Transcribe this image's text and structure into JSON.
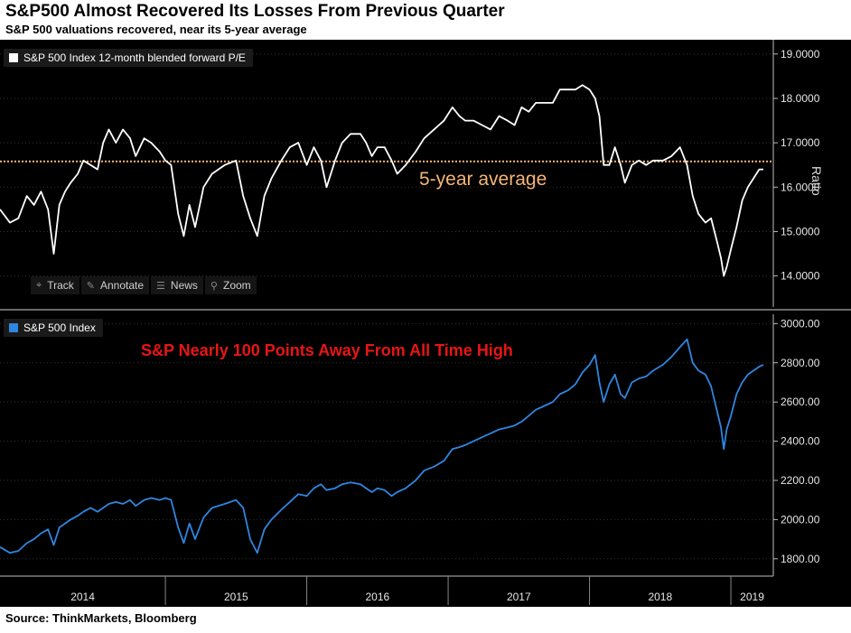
{
  "header": {
    "title": "S&P500 Almost Recovered Its Losses From Previous Quarter",
    "subtitle": "S&P 500 valuations recovered, near its 5-year average"
  },
  "footer": {
    "source": "Source: ThinkMarkets, Bloomberg"
  },
  "toolbar": {
    "items": [
      {
        "label": "Track",
        "icon": "crosshair-icon",
        "glyph": "⌖"
      },
      {
        "label": "Annotate",
        "icon": "pencil-icon",
        "glyph": "✎"
      },
      {
        "label": "News",
        "icon": "news-icon",
        "glyph": "☰"
      },
      {
        "label": "Zoom",
        "icon": "magnifier-icon",
        "glyph": "⚲"
      }
    ]
  },
  "colors": {
    "pe_line": "#ffffff",
    "spx_line": "#2f86e0",
    "avg_line": "#f5b576",
    "ath_text": "#e81515",
    "background": "#000000"
  },
  "chart_data": [
    {
      "type": "line",
      "panel": "top",
      "legend": "S&P 500 Index 12-month blended forward P/E",
      "axis_label": "Ratio",
      "ylim": [
        13.3,
        19.2
      ],
      "yticks": [
        "14.0000",
        "15.0000",
        "16.0000",
        "17.0000",
        "18.0000",
        "19.0000"
      ],
      "ytick_values": [
        14,
        15,
        16,
        17,
        18,
        19
      ],
      "reference_line": {
        "value": 16.58,
        "label": "5-year average"
      },
      "series": [
        {
          "points": [
            [
              2013.83,
              15.5
            ],
            [
              2013.9,
              15.2
            ],
            [
              2013.96,
              15.3
            ],
            [
              2014.02,
              15.8
            ],
            [
              2014.07,
              15.6
            ],
            [
              2014.12,
              15.9
            ],
            [
              2014.17,
              15.5
            ],
            [
              2014.21,
              14.5
            ],
            [
              2014.25,
              15.6
            ],
            [
              2014.29,
              15.9
            ],
            [
              2014.33,
              16.1
            ],
            [
              2014.38,
              16.3
            ],
            [
              2014.42,
              16.6
            ],
            [
              2014.47,
              16.5
            ],
            [
              2014.52,
              16.4
            ],
            [
              2014.56,
              17.0
            ],
            [
              2014.6,
              17.3
            ],
            [
              2014.65,
              17.0
            ],
            [
              2014.7,
              17.3
            ],
            [
              2014.75,
              17.1
            ],
            [
              2014.79,
              16.7
            ],
            [
              2014.85,
              17.1
            ],
            [
              2014.9,
              17.0
            ],
            [
              2014.96,
              16.8
            ],
            [
              2015.0,
              16.6
            ],
            [
              2015.04,
              16.5
            ],
            [
              2015.09,
              15.4
            ],
            [
              2015.13,
              14.9
            ],
            [
              2015.17,
              15.6
            ],
            [
              2015.21,
              15.1
            ],
            [
              2015.27,
              16.0
            ],
            [
              2015.33,
              16.3
            ],
            [
              2015.42,
              16.5
            ],
            [
              2015.5,
              16.6
            ],
            [
              2015.55,
              15.8
            ],
            [
              2015.6,
              15.3
            ],
            [
              2015.65,
              14.9
            ],
            [
              2015.7,
              15.8
            ],
            [
              2015.75,
              16.2
            ],
            [
              2015.82,
              16.6
            ],
            [
              2015.88,
              16.9
            ],
            [
              2015.94,
              17.0
            ],
            [
              2016.0,
              16.5
            ],
            [
              2016.05,
              16.9
            ],
            [
              2016.1,
              16.6
            ],
            [
              2016.14,
              16.0
            ],
            [
              2016.2,
              16.6
            ],
            [
              2016.25,
              17.0
            ],
            [
              2016.31,
              17.2
            ],
            [
              2016.38,
              17.2
            ],
            [
              2016.42,
              17.0
            ],
            [
              2016.46,
              16.7
            ],
            [
              2016.5,
              16.9
            ],
            [
              2016.55,
              16.9
            ],
            [
              2016.6,
              16.6
            ],
            [
              2016.64,
              16.3
            ],
            [
              2016.7,
              16.5
            ],
            [
              2016.77,
              16.8
            ],
            [
              2016.83,
              17.1
            ],
            [
              2016.9,
              17.3
            ],
            [
              2016.97,
              17.5
            ],
            [
              2017.03,
              17.8
            ],
            [
              2017.08,
              17.6
            ],
            [
              2017.12,
              17.5
            ],
            [
              2017.18,
              17.5
            ],
            [
              2017.24,
              17.4
            ],
            [
              2017.3,
              17.3
            ],
            [
              2017.36,
              17.6
            ],
            [
              2017.42,
              17.5
            ],
            [
              2017.47,
              17.4
            ],
            [
              2017.52,
              17.8
            ],
            [
              2017.57,
              17.7
            ],
            [
              2017.62,
              17.9
            ],
            [
              2017.68,
              17.9
            ],
            [
              2017.74,
              17.9
            ],
            [
              2017.79,
              18.2
            ],
            [
              2017.85,
              18.2
            ],
            [
              2017.9,
              18.2
            ],
            [
              2017.95,
              18.3
            ],
            [
              2018.0,
              18.2
            ],
            [
              2018.04,
              18.0
            ],
            [
              2018.07,
              17.6
            ],
            [
              2018.1,
              16.5
            ],
            [
              2018.14,
              16.5
            ],
            [
              2018.18,
              16.9
            ],
            [
              2018.22,
              16.5
            ],
            [
              2018.25,
              16.1
            ],
            [
              2018.3,
              16.5
            ],
            [
              2018.35,
              16.6
            ],
            [
              2018.4,
              16.5
            ],
            [
              2018.45,
              16.6
            ],
            [
              2018.52,
              16.6
            ],
            [
              2018.58,
              16.7
            ],
            [
              2018.64,
              16.9
            ],
            [
              2018.69,
              16.5
            ],
            [
              2018.73,
              15.8
            ],
            [
              2018.77,
              15.4
            ],
            [
              2018.82,
              15.2
            ],
            [
              2018.86,
              15.3
            ],
            [
              2018.9,
              14.8
            ],
            [
              2018.93,
              14.4
            ],
            [
              2018.95,
              14.0
            ],
            [
              2018.97,
              14.2
            ],
            [
              2019.0,
              14.6
            ],
            [
              2019.04,
              15.1
            ],
            [
              2019.08,
              15.7
            ],
            [
              2019.12,
              16.0
            ],
            [
              2019.16,
              16.2
            ],
            [
              2019.2,
              16.4
            ],
            [
              2019.23,
              16.4
            ]
          ]
        }
      ]
    },
    {
      "type": "line",
      "panel": "bottom",
      "legend": "S&P 500 Index",
      "annotation": "S&P Nearly 100 Points Away From All Time High",
      "ylim": [
        1730,
        3020
      ],
      "yticks": [
        "1800.00",
        "2000.00",
        "2200.00",
        "2400.00",
        "2600.00",
        "2800.00",
        "3000.00"
      ],
      "ytick_values": [
        1800,
        2000,
        2200,
        2400,
        2600,
        2800,
        3000
      ],
      "xticks": [
        "2014",
        "2015",
        "2016",
        "2017",
        "2018",
        "2019"
      ],
      "xtick_values": [
        2014.0,
        2015.0,
        2016.0,
        2017.0,
        2018.0,
        2019.0
      ],
      "xlim": [
        2013.83,
        2019.3
      ],
      "series": [
        {
          "points": [
            [
              2013.83,
              1860
            ],
            [
              2013.9,
              1830
            ],
            [
              2013.96,
              1840
            ],
            [
              2014.02,
              1880
            ],
            [
              2014.07,
              1900
            ],
            [
              2014.12,
              1930
            ],
            [
              2014.17,
              1950
            ],
            [
              2014.21,
              1870
            ],
            [
              2014.25,
              1960
            ],
            [
              2014.29,
              1980
            ],
            [
              2014.33,
              2000
            ],
            [
              2014.38,
              2020
            ],
            [
              2014.42,
              2040
            ],
            [
              2014.47,
              2060
            ],
            [
              2014.52,
              2040
            ],
            [
              2014.56,
              2060
            ],
            [
              2014.6,
              2080
            ],
            [
              2014.65,
              2090
            ],
            [
              2014.7,
              2080
            ],
            [
              2014.75,
              2100
            ],
            [
              2014.79,
              2070
            ],
            [
              2014.85,
              2100
            ],
            [
              2014.9,
              2110
            ],
            [
              2014.96,
              2100
            ],
            [
              2015.0,
              2110
            ],
            [
              2015.04,
              2100
            ],
            [
              2015.09,
              1960
            ],
            [
              2015.13,
              1880
            ],
            [
              2015.17,
              1980
            ],
            [
              2015.21,
              1900
            ],
            [
              2015.27,
              2010
            ],
            [
              2015.33,
              2060
            ],
            [
              2015.42,
              2080
            ],
            [
              2015.5,
              2100
            ],
            [
              2015.55,
              2060
            ],
            [
              2015.6,
              1900
            ],
            [
              2015.65,
              1830
            ],
            [
              2015.7,
              1950
            ],
            [
              2015.75,
              2000
            ],
            [
              2015.82,
              2050
            ],
            [
              2015.88,
              2090
            ],
            [
              2015.94,
              2130
            ],
            [
              2016.0,
              2120
            ],
            [
              2016.05,
              2160
            ],
            [
              2016.1,
              2180
            ],
            [
              2016.14,
              2150
            ],
            [
              2016.2,
              2160
            ],
            [
              2016.25,
              2180
            ],
            [
              2016.31,
              2190
            ],
            [
              2016.38,
              2180
            ],
            [
              2016.42,
              2160
            ],
            [
              2016.46,
              2140
            ],
            [
              2016.5,
              2160
            ],
            [
              2016.55,
              2150
            ],
            [
              2016.6,
              2120
            ],
            [
              2016.64,
              2140
            ],
            [
              2016.7,
              2160
            ],
            [
              2016.77,
              2200
            ],
            [
              2016.83,
              2250
            ],
            [
              2016.9,
              2270
            ],
            [
              2016.97,
              2300
            ],
            [
              2017.03,
              2360
            ],
            [
              2017.08,
              2370
            ],
            [
              2017.12,
              2380
            ],
            [
              2017.18,
              2400
            ],
            [
              2017.24,
              2420
            ],
            [
              2017.3,
              2440
            ],
            [
              2017.36,
              2460
            ],
            [
              2017.42,
              2470
            ],
            [
              2017.47,
              2480
            ],
            [
              2017.52,
              2500
            ],
            [
              2017.57,
              2530
            ],
            [
              2017.62,
              2560
            ],
            [
              2017.68,
              2580
            ],
            [
              2017.74,
              2600
            ],
            [
              2017.79,
              2640
            ],
            [
              2017.85,
              2660
            ],
            [
              2017.9,
              2690
            ],
            [
              2017.95,
              2750
            ],
            [
              2018.0,
              2790
            ],
            [
              2018.04,
              2840
            ],
            [
              2018.07,
              2700
            ],
            [
              2018.1,
              2600
            ],
            [
              2018.14,
              2690
            ],
            [
              2018.18,
              2740
            ],
            [
              2018.22,
              2640
            ],
            [
              2018.25,
              2620
            ],
            [
              2018.3,
              2700
            ],
            [
              2018.35,
              2720
            ],
            [
              2018.4,
              2730
            ],
            [
              2018.45,
              2760
            ],
            [
              2018.52,
              2790
            ],
            [
              2018.58,
              2830
            ],
            [
              2018.64,
              2880
            ],
            [
              2018.69,
              2920
            ],
            [
              2018.73,
              2800
            ],
            [
              2018.77,
              2760
            ],
            [
              2018.82,
              2740
            ],
            [
              2018.86,
              2680
            ],
            [
              2018.9,
              2560
            ],
            [
              2018.93,
              2470
            ],
            [
              2018.95,
              2360
            ],
            [
              2018.97,
              2460
            ],
            [
              2019.0,
              2530
            ],
            [
              2019.04,
              2640
            ],
            [
              2019.08,
              2700
            ],
            [
              2019.12,
              2740
            ],
            [
              2019.16,
              2760
            ],
            [
              2019.2,
              2780
            ],
            [
              2019.23,
              2790
            ]
          ]
        }
      ]
    }
  ]
}
